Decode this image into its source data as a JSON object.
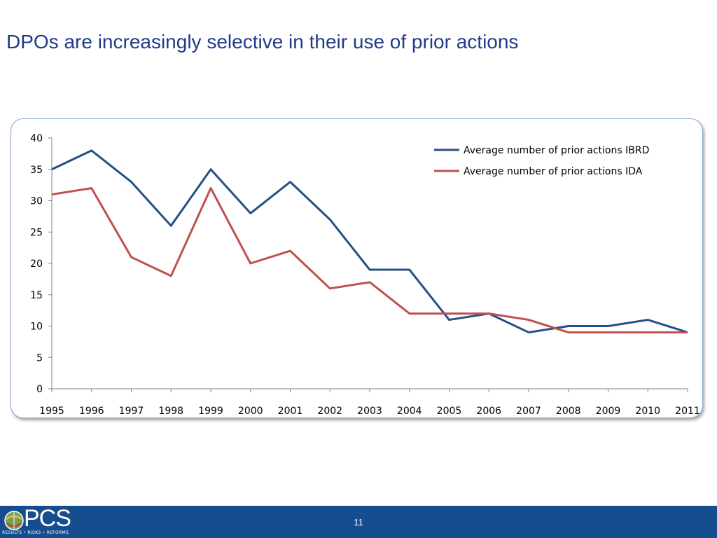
{
  "slide": {
    "title": "DPOs are increasingly selective in their use of prior actions",
    "page_number": "11"
  },
  "footer": {
    "logo_text": "PCS",
    "logo_tagline": "RESULTS • RISKS • REFORMS",
    "background": "#154d8f"
  },
  "chart_data": {
    "type": "line",
    "title": "",
    "xlabel": "",
    "ylabel": "",
    "categories": [
      "1995",
      "1996",
      "1997",
      "1998",
      "1999",
      "2000",
      "2001",
      "2002",
      "2003",
      "2004",
      "2005",
      "2006",
      "2007",
      "2008",
      "2009",
      "2010",
      "2011"
    ],
    "ylim": [
      0,
      40
    ],
    "yticks": [
      0,
      5,
      10,
      15,
      20,
      25,
      30,
      35,
      40
    ],
    "grid": false,
    "legend_position": "top-right",
    "series": [
      {
        "name": "Average number of prior actions IBRD",
        "color": "#254f86",
        "values": [
          35,
          38,
          33,
          26,
          35,
          28,
          33,
          27,
          19,
          19,
          11,
          12,
          9,
          10,
          10,
          11,
          9
        ]
      },
      {
        "name": "Average number of prior actions IDA",
        "color": "#c0504d",
        "values": [
          31,
          32,
          21,
          18,
          32,
          20,
          22,
          16,
          17,
          12,
          12,
          12,
          11,
          9,
          9,
          9,
          9
        ]
      }
    ]
  }
}
